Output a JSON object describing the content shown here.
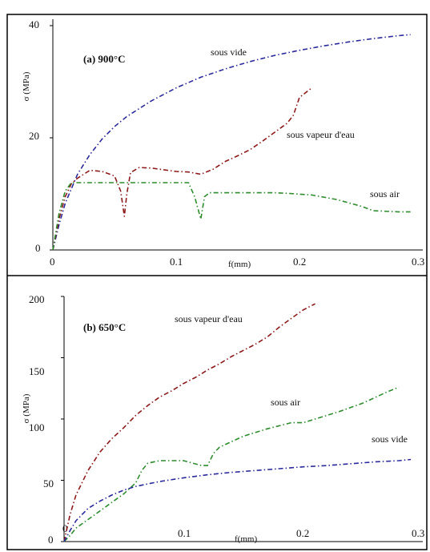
{
  "chart_data": [
    {
      "type": "line",
      "panel_label": "(a)  900°C",
      "xlabel": "f(mm)",
      "ylabel": "σ (MPa)",
      "xlim": [
        0,
        0.3
      ],
      "ylim": [
        0,
        40
      ],
      "xticks": [
        "0",
        "0.1",
        "0.2",
        "0.3"
      ],
      "yticks": [
        "0",
        "20",
        "40"
      ],
      "series": [
        {
          "name": "sous vide",
          "color": "#2a2a9a",
          "dash": "dashdot",
          "x": [
            0,
            0.005,
            0.01,
            0.02,
            0.03,
            0.04,
            0.05,
            0.06,
            0.08,
            0.1,
            0.12,
            0.14,
            0.16,
            0.18,
            0.2,
            0.22,
            0.24,
            0.26,
            0.28,
            0.29
          ],
          "y": [
            0,
            4.5,
            8.3,
            13.5,
            17.0,
            19.8,
            22.0,
            23.8,
            26.6,
            28.9,
            30.8,
            32.3,
            33.6,
            34.7,
            35.6,
            36.4,
            37.1,
            37.7,
            38.2,
            38.4
          ]
        },
        {
          "name": "sous vapeur d'eau",
          "color": "#8b1a1a",
          "dash": "dashdot",
          "x": [
            0,
            0.005,
            0.01,
            0.015,
            0.02,
            0.03,
            0.04,
            0.05,
            0.055,
            0.058,
            0.06,
            0.063,
            0.07,
            0.08,
            0.09,
            0.1,
            0.11,
            0.12,
            0.13,
            0.14,
            0.15,
            0.16,
            0.17,
            0.18,
            0.19,
            0.195,
            0.2,
            0.21
          ],
          "y": [
            0,
            5.5,
            9.5,
            11.8,
            12.8,
            14.2,
            14.0,
            13.2,
            10.5,
            6.0,
            10.0,
            13.8,
            14.7,
            14.6,
            14.3,
            14.0,
            13.9,
            13.5,
            14.4,
            15.8,
            16.8,
            17.9,
            19.4,
            21.0,
            22.6,
            24.0,
            27.2,
            28.9
          ]
        },
        {
          "name": "sous air",
          "color": "#2e8b2e",
          "dash": "dashdot",
          "x": [
            0,
            0.005,
            0.01,
            0.015,
            0.02,
            0.04,
            0.06,
            0.07,
            0.08,
            0.09,
            0.1,
            0.11,
            0.115,
            0.12,
            0.123,
            0.127,
            0.13,
            0.16,
            0.18,
            0.19,
            0.21,
            0.23,
            0.25,
            0.26,
            0.28,
            0.29
          ],
          "y": [
            0,
            6.5,
            10.5,
            12.0,
            12.0,
            12.0,
            12.0,
            12.0,
            12.0,
            12.0,
            12.0,
            12.0,
            9.5,
            5.5,
            9.5,
            10.2,
            10.2,
            10.2,
            10.2,
            10.1,
            9.8,
            9.0,
            7.8,
            7.0,
            6.8,
            6.8
          ]
        }
      ]
    },
    {
      "type": "line",
      "panel_label": "(b)  650°C",
      "xlabel": "f(mm)",
      "ylabel": "σ (MPa)",
      "xlim": [
        0,
        0.3
      ],
      "ylim": [
        0,
        200
      ],
      "xticks": [
        "0",
        "0.1",
        "0.2",
        "0.3"
      ],
      "yticks": [
        "0",
        "50",
        "100",
        "150",
        "200"
      ],
      "series": [
        {
          "name": "sous vapeur d'eau",
          "color": "#8b1a1a",
          "dash": "dashdot",
          "x": [
            0,
            0.005,
            0.01,
            0.02,
            0.03,
            0.04,
            0.05,
            0.06,
            0.07,
            0.08,
            0.09,
            0.1,
            0.11,
            0.12,
            0.13,
            0.14,
            0.15,
            0.16,
            0.17,
            0.18,
            0.19,
            0.2,
            0.21
          ],
          "y": [
            0,
            22,
            38,
            58,
            73,
            84,
            93,
            103,
            111,
            118,
            123,
            129,
            134,
            140,
            145,
            151,
            156,
            161,
            167,
            175,
            182,
            189,
            194
          ]
        },
        {
          "name": "sous air",
          "color": "#2e8b2e",
          "dash": "dashdot",
          "x": [
            0,
            0.005,
            0.01,
            0.02,
            0.03,
            0.04,
            0.05,
            0.06,
            0.065,
            0.07,
            0.08,
            0.1,
            0.115,
            0.12,
            0.125,
            0.13,
            0.15,
            0.17,
            0.19,
            0.2,
            0.21,
            0.23,
            0.25,
            0.27,
            0.28
          ],
          "y": [
            0,
            5,
            11,
            18,
            25,
            32,
            39,
            48,
            58,
            64,
            66,
            66,
            62,
            62,
            72,
            77,
            86,
            92,
            97,
            97,
            100,
            106,
            113,
            122,
            126
          ]
        },
        {
          "name": "sous vide",
          "color": "#2a2a9a",
          "dash": "dashdot",
          "x": [
            0,
            0.005,
            0.01,
            0.02,
            0.03,
            0.04,
            0.05,
            0.06,
            0.08,
            0.1,
            0.12,
            0.14,
            0.16,
            0.18,
            0.2,
            0.22,
            0.24,
            0.26,
            0.28,
            0.29
          ],
          "y": [
            0,
            9,
            17,
            27,
            33,
            38,
            42,
            45,
            49,
            52,
            54.5,
            56.5,
            58,
            59.5,
            61,
            62,
            63.5,
            65,
            66,
            67
          ]
        }
      ]
    }
  ]
}
